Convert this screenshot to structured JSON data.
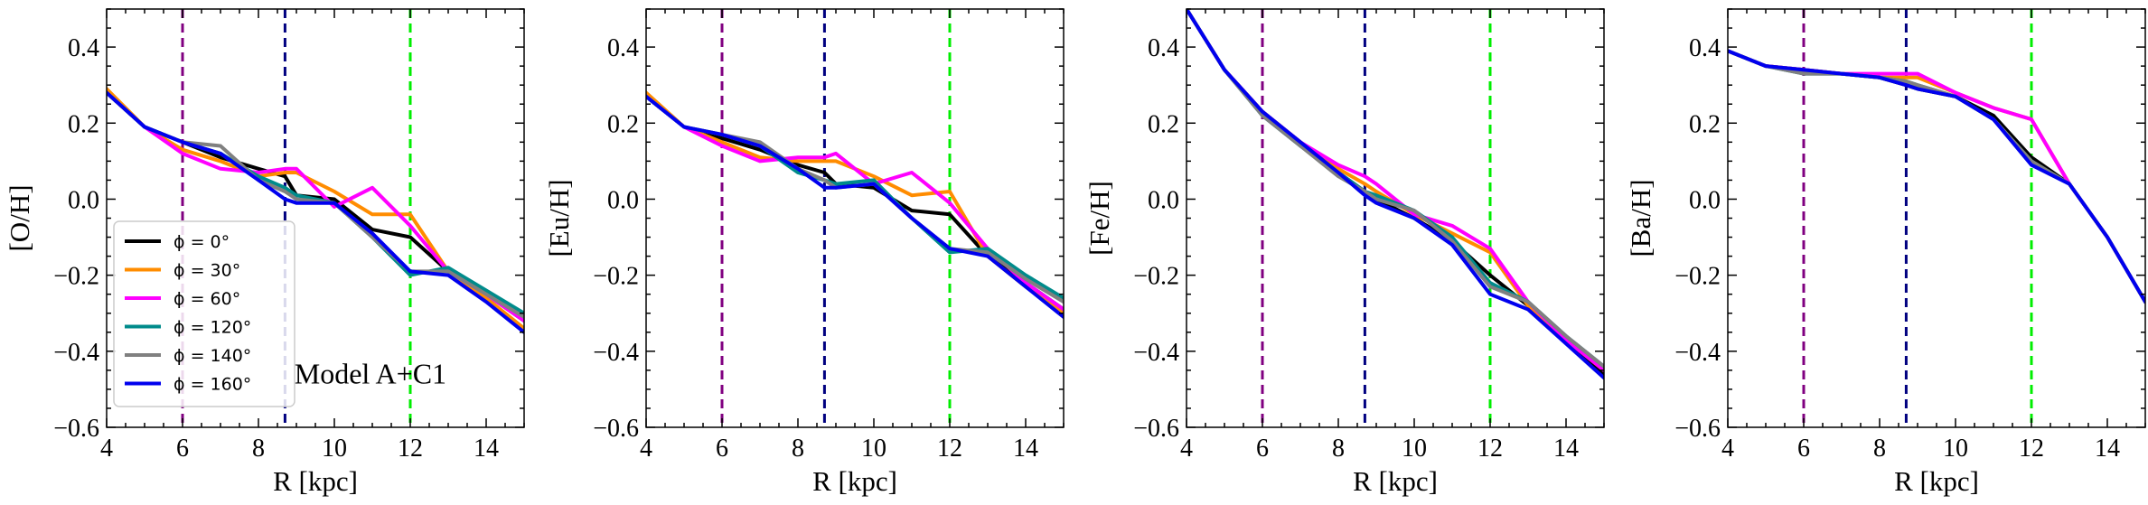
{
  "shared": {
    "xlim": [
      4,
      15
    ],
    "ylim": [
      -0.6,
      0.5
    ],
    "xticks": [
      4,
      6,
      8,
      10,
      12,
      14
    ],
    "yticks": [
      -0.6,
      -0.4,
      -0.2,
      0.0,
      0.2,
      0.4
    ],
    "xlabel": "R [kpc]",
    "vlines": [
      {
        "x": 6.0,
        "color": "#800080"
      },
      {
        "x": 8.7,
        "color": "#000080"
      },
      {
        "x": 12.0,
        "color": "#00ee00"
      }
    ],
    "legend": [
      {
        "phi_label": "ϕ = 0°",
        "color": "#000000"
      },
      {
        "phi_label": "ϕ = 30°",
        "color": "#ff8c00"
      },
      {
        "phi_label": "ϕ = 60°",
        "color": "#ff00ff"
      },
      {
        "phi_label": "ϕ = 120°",
        "color": "#008b8b"
      },
      {
        "phi_label": "ϕ = 140°",
        "color": "#808080"
      },
      {
        "phi_label": "ϕ = 160°",
        "color": "#0000ee"
      }
    ]
  },
  "chart_data": [
    {
      "type": "line",
      "ylabel": "[O/H]",
      "annotation": "Model A+C1",
      "x": [
        4,
        5,
        6,
        7,
        8,
        8.7,
        9,
        10,
        11,
        12,
        13,
        14,
        15
      ],
      "series": [
        {
          "name": "ϕ = 0°",
          "color": "#000000",
          "values": [
            0.28,
            0.19,
            0.15,
            0.11,
            0.08,
            0.06,
            0.01,
            0.0,
            -0.08,
            -0.1,
            -0.19,
            -0.25,
            -0.32
          ]
        },
        {
          "name": "ϕ = 30°",
          "color": "#ff8c00",
          "values": [
            0.29,
            0.19,
            0.13,
            0.1,
            0.06,
            0.07,
            0.07,
            0.02,
            -0.04,
            -0.04,
            -0.19,
            -0.26,
            -0.34
          ]
        },
        {
          "name": "ϕ = 60°",
          "color": "#ff00ff",
          "values": [
            0.28,
            0.19,
            0.12,
            0.08,
            0.07,
            0.08,
            0.08,
            -0.02,
            0.03,
            -0.07,
            -0.19,
            -0.25,
            -0.32
          ]
        },
        {
          "name": "ϕ = 120°",
          "color": "#008b8b",
          "values": [
            0.28,
            0.19,
            0.15,
            0.12,
            0.06,
            0.03,
            0.01,
            -0.01,
            -0.1,
            -0.2,
            -0.18,
            -0.24,
            -0.3
          ]
        },
        {
          "name": "ϕ = 140°",
          "color": "#808080",
          "values": [
            0.28,
            0.19,
            0.15,
            0.14,
            0.05,
            0.02,
            0.0,
            -0.01,
            -0.1,
            -0.19,
            -0.19,
            -0.25,
            -0.31
          ]
        },
        {
          "name": "ϕ = 160°",
          "color": "#0000ee",
          "values": [
            0.28,
            0.19,
            0.15,
            0.12,
            0.05,
            0.0,
            -0.01,
            -0.01,
            -0.09,
            -0.19,
            -0.2,
            -0.27,
            -0.35
          ]
        }
      ]
    },
    {
      "type": "line",
      "ylabel": "[Eu/H]",
      "annotation": "",
      "x": [
        4,
        5,
        6,
        7,
        8,
        8.7,
        9,
        10,
        11,
        12,
        13,
        14,
        15
      ],
      "series": [
        {
          "name": "ϕ = 0°",
          "color": "#000000",
          "values": [
            0.27,
            0.19,
            0.16,
            0.13,
            0.09,
            0.07,
            0.04,
            0.03,
            -0.03,
            -0.04,
            -0.15,
            -0.22,
            -0.29
          ]
        },
        {
          "name": "ϕ = 30°",
          "color": "#ff8c00",
          "values": [
            0.28,
            0.19,
            0.15,
            0.11,
            0.1,
            0.1,
            0.1,
            0.06,
            0.01,
            0.02,
            -0.15,
            -0.23,
            -0.3
          ]
        },
        {
          "name": "ϕ = 60°",
          "color": "#ff00ff",
          "values": [
            0.27,
            0.19,
            0.14,
            0.1,
            0.11,
            0.11,
            0.12,
            0.04,
            0.07,
            -0.01,
            -0.13,
            -0.22,
            -0.29
          ]
        },
        {
          "name": "ϕ = 120°",
          "color": "#008b8b",
          "values": [
            0.27,
            0.19,
            0.17,
            0.14,
            0.07,
            0.05,
            0.04,
            0.05,
            -0.05,
            -0.14,
            -0.13,
            -0.2,
            -0.26
          ]
        },
        {
          "name": "ϕ = 140°",
          "color": "#808080",
          "values": [
            0.27,
            0.19,
            0.17,
            0.15,
            0.08,
            0.05,
            0.03,
            0.04,
            -0.05,
            -0.13,
            -0.14,
            -0.21,
            -0.27
          ]
        },
        {
          "name": "ϕ = 160°",
          "color": "#0000ee",
          "values": [
            0.27,
            0.19,
            0.17,
            0.14,
            0.08,
            0.03,
            0.03,
            0.04,
            -0.05,
            -0.13,
            -0.15,
            -0.23,
            -0.31
          ]
        }
      ]
    },
    {
      "type": "line",
      "ylabel": "[Fe/H]",
      "annotation": "",
      "x": [
        4,
        5,
        6,
        7,
        8,
        8.7,
        9,
        10,
        11,
        12,
        13,
        14,
        15
      ],
      "series": [
        {
          "name": "ϕ = 0°",
          "color": "#000000",
          "values": [
            0.5,
            0.34,
            0.23,
            0.15,
            0.07,
            0.02,
            0.0,
            -0.05,
            -0.11,
            -0.2,
            -0.28,
            -0.37,
            -0.46
          ]
        },
        {
          "name": "ϕ = 30°",
          "color": "#ff8c00",
          "values": [
            0.5,
            0.34,
            0.23,
            0.15,
            0.08,
            0.04,
            0.02,
            -0.04,
            -0.09,
            -0.14,
            -0.28,
            -0.37,
            -0.45
          ]
        },
        {
          "name": "ϕ = 60°",
          "color": "#ff00ff",
          "values": [
            0.5,
            0.34,
            0.23,
            0.15,
            0.09,
            0.06,
            0.04,
            -0.04,
            -0.07,
            -0.13,
            -0.27,
            -0.37,
            -0.45
          ]
        },
        {
          "name": "ϕ = 120°",
          "color": "#008b8b",
          "values": [
            0.5,
            0.34,
            0.22,
            0.14,
            0.07,
            0.02,
            0.01,
            -0.03,
            -0.1,
            -0.22,
            -0.27,
            -0.36,
            -0.44
          ]
        },
        {
          "name": "ϕ = 140°",
          "color": "#808080",
          "values": [
            0.5,
            0.34,
            0.22,
            0.14,
            0.06,
            0.02,
            0.0,
            -0.03,
            -0.11,
            -0.23,
            -0.27,
            -0.36,
            -0.44
          ]
        },
        {
          "name": "ϕ = 160°",
          "color": "#0000ee",
          "values": [
            0.5,
            0.34,
            0.23,
            0.15,
            0.07,
            0.01,
            -0.01,
            -0.05,
            -0.12,
            -0.25,
            -0.29,
            -0.38,
            -0.47
          ]
        }
      ]
    },
    {
      "type": "line",
      "ylabel": "[Ba/H]",
      "annotation": "",
      "x": [
        4,
        5,
        6,
        7,
        8,
        8.7,
        9,
        10,
        11,
        12,
        13,
        14,
        15
      ],
      "series": [
        {
          "name": "ϕ = 0°",
          "color": "#000000",
          "values": [
            0.39,
            0.35,
            0.34,
            0.33,
            0.32,
            0.3,
            0.29,
            0.27,
            0.22,
            0.11,
            0.04,
            -0.1,
            -0.27
          ]
        },
        {
          "name": "ϕ = 30°",
          "color": "#ff8c00",
          "values": [
            0.39,
            0.35,
            0.34,
            0.33,
            0.32,
            0.32,
            0.32,
            0.28,
            0.24,
            0.21,
            0.04,
            -0.1,
            -0.27
          ]
        },
        {
          "name": "ϕ = 60°",
          "color": "#ff00ff",
          "values": [
            0.39,
            0.35,
            0.34,
            0.33,
            0.33,
            0.33,
            0.33,
            0.28,
            0.24,
            0.21,
            0.04,
            -0.1,
            -0.27
          ]
        },
        {
          "name": "ϕ = 120°",
          "color": "#008b8b",
          "values": [
            0.39,
            0.35,
            0.33,
            0.33,
            0.32,
            0.31,
            0.3,
            0.27,
            0.21,
            0.1,
            0.04,
            -0.1,
            -0.27
          ]
        },
        {
          "name": "ϕ = 140°",
          "color": "#808080",
          "values": [
            0.39,
            0.35,
            0.33,
            0.33,
            0.32,
            0.31,
            0.3,
            0.27,
            0.21,
            0.1,
            0.04,
            -0.1,
            -0.27
          ]
        },
        {
          "name": "ϕ = 160°",
          "color": "#0000ee",
          "values": [
            0.39,
            0.35,
            0.34,
            0.33,
            0.32,
            0.3,
            0.29,
            0.27,
            0.21,
            0.09,
            0.04,
            -0.1,
            -0.27
          ]
        }
      ]
    }
  ]
}
